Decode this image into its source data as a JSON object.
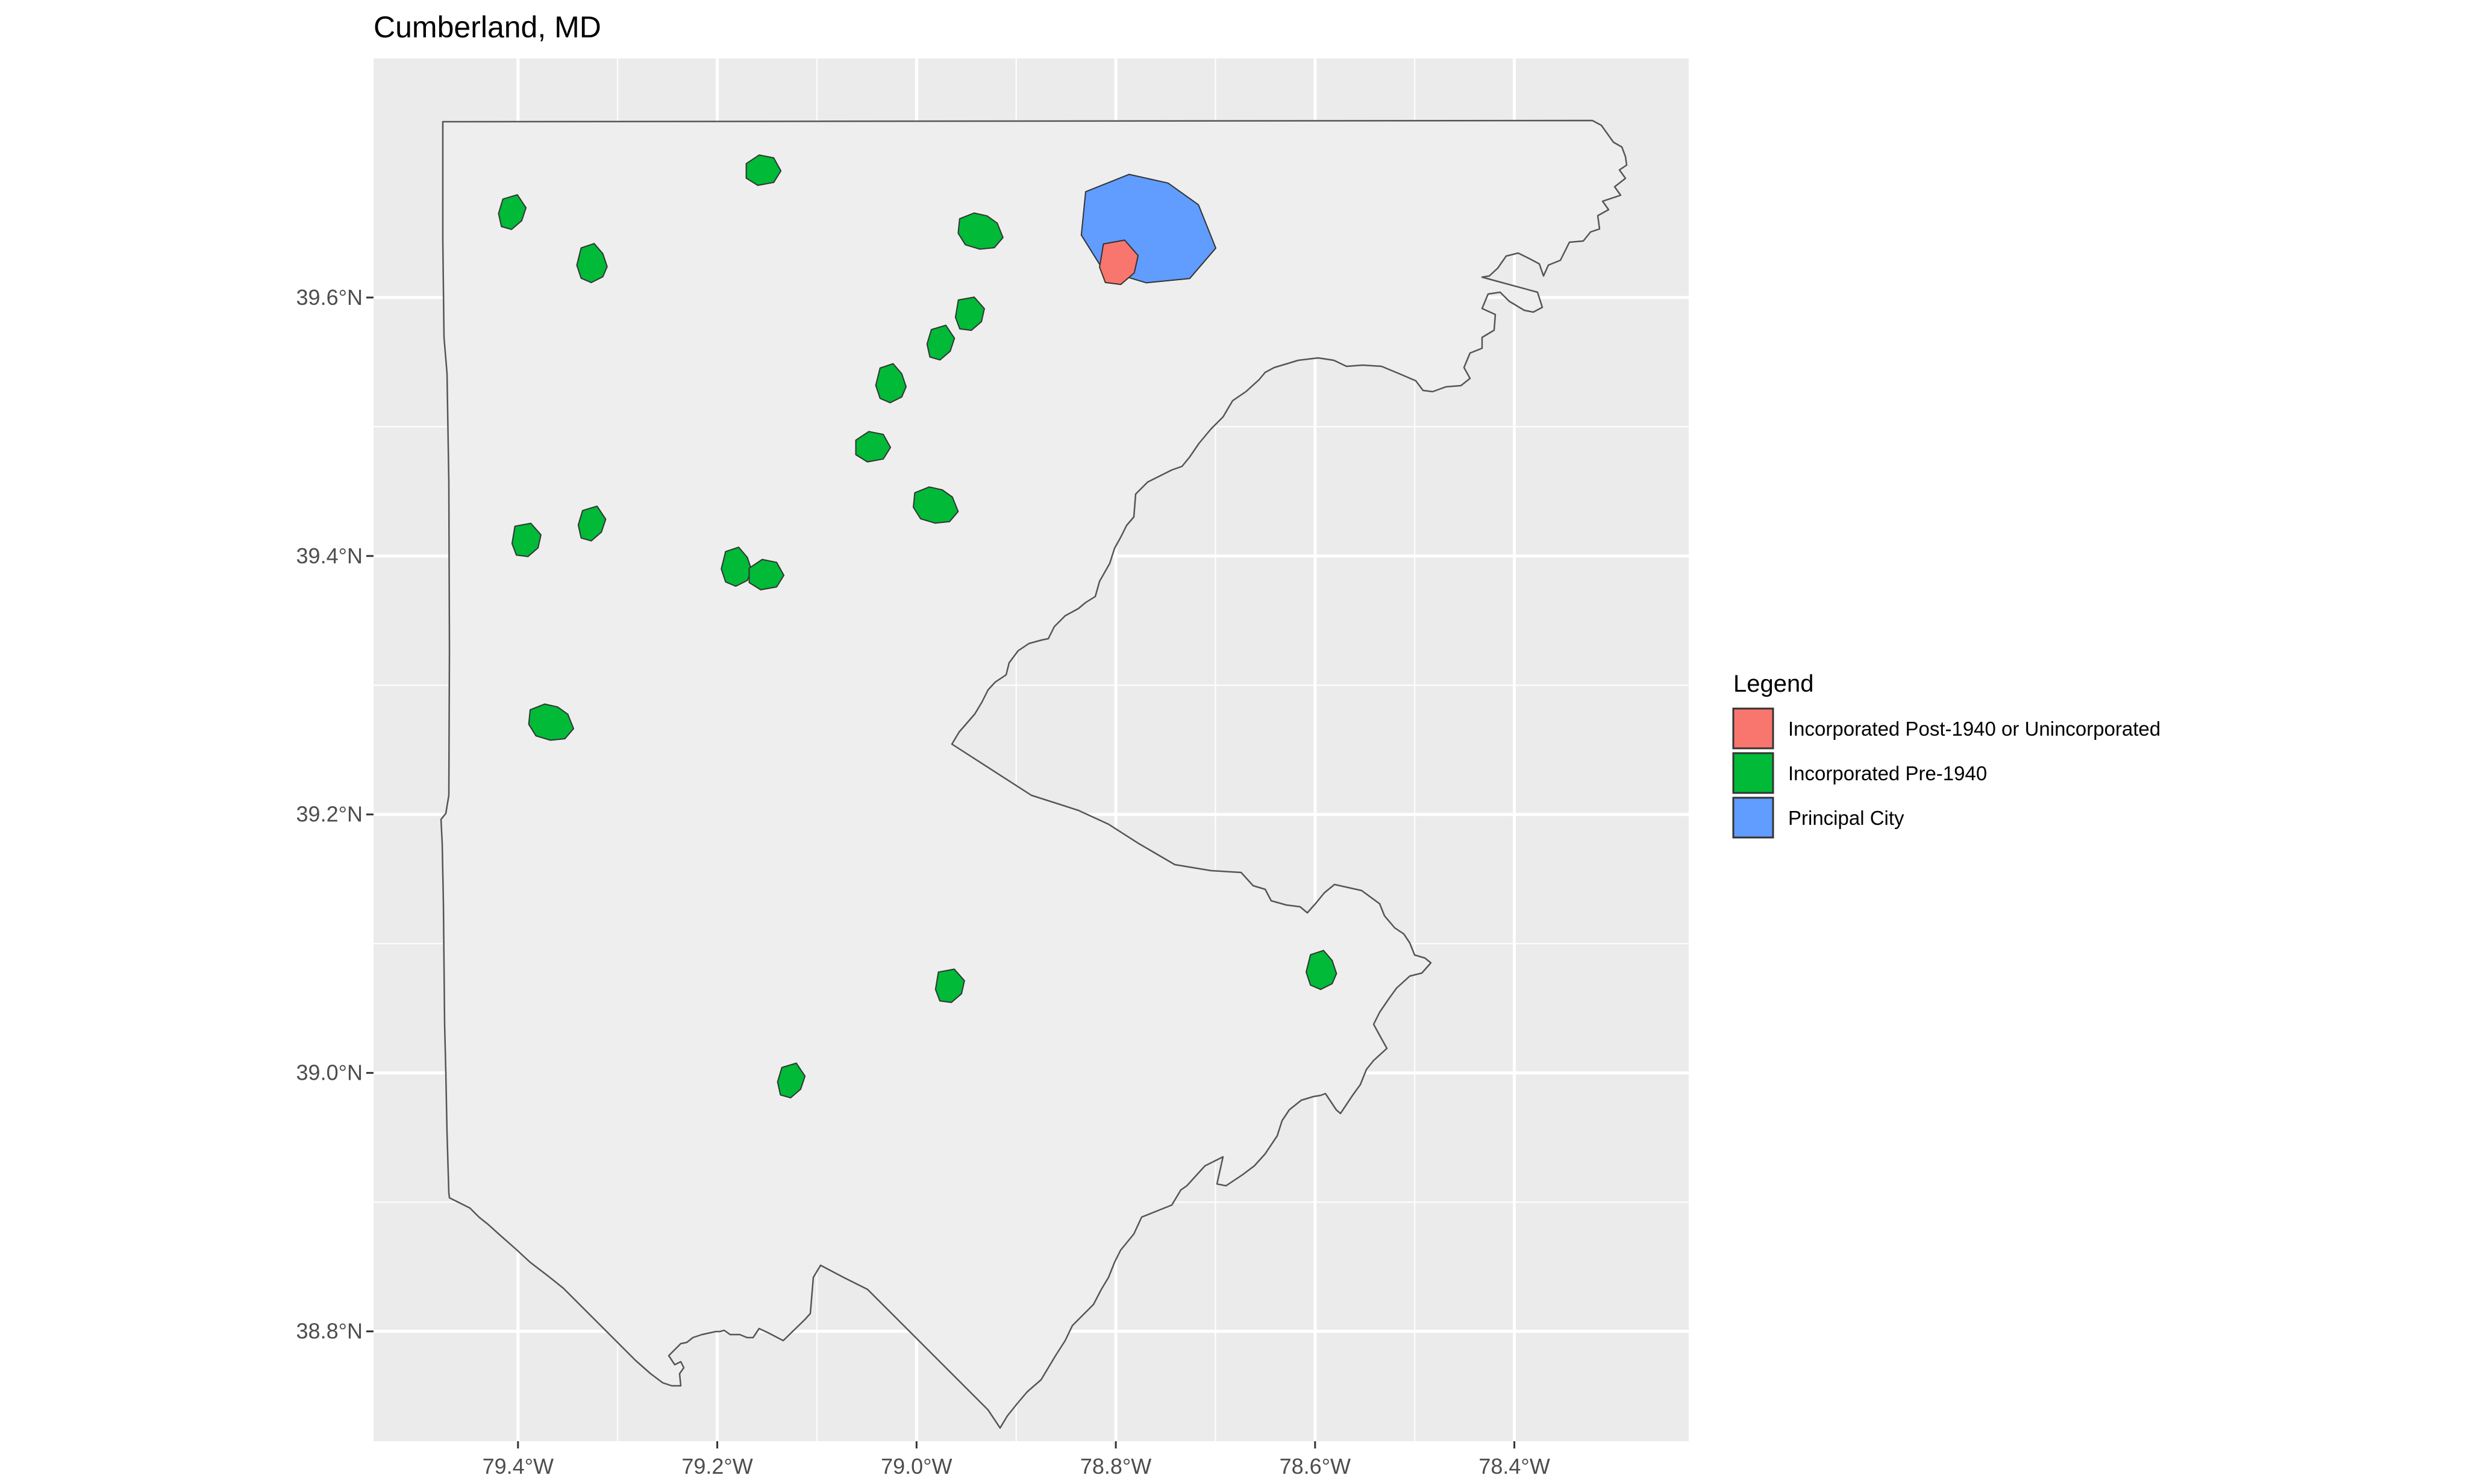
{
  "title": "Cumberland, MD",
  "legend": {
    "title": "Legend",
    "items": [
      {
        "label": "Incorporated Post-1940 or Unincorporated",
        "color": "#F8766D"
      },
      {
        "label": "Incorporated Pre-1940",
        "color": "#00BA38"
      },
      {
        "label": "Principal City",
        "color": "#619CFF"
      }
    ]
  },
  "colors": {
    "panel_background": "#EBEBEB",
    "gridline": "#FFFFFF",
    "county_fill": "#EEEEEE",
    "county_stroke": "#555555",
    "place_stroke": "#333333"
  },
  "chart_data": {
    "type": "map",
    "title": "Cumberland, MD",
    "xlabel": "",
    "ylabel": "",
    "xlim": [
      -79.545,
      -78.225
    ],
    "ylim": [
      38.715,
      39.785
    ],
    "x_ticks": [
      -79.4,
      -79.2,
      -79.0,
      -78.8,
      -78.6,
      -78.4
    ],
    "x_tick_labels": [
      "79.4°W",
      "79.2°W",
      "79.0°W",
      "78.8°W",
      "78.6°W",
      "78.4°W"
    ],
    "y_ticks": [
      38.8,
      39.0,
      39.2,
      39.4,
      39.6
    ],
    "y_tick_labels": [
      "38.8°N",
      "39.0°N",
      "39.2°N",
      "39.4°N",
      "39.6°N"
    ],
    "grid": true,
    "legend_position": "right",
    "places": [
      {
        "category": "Principal City",
        "lon": -78.765,
        "lat": 39.655
      },
      {
        "category": "Incorporated Post-1940 or Unincorporated",
        "lon": -78.795,
        "lat": 39.628
      },
      {
        "category": "Incorporated Pre-1940",
        "lon": -79.405,
        "lat": 39.665
      },
      {
        "category": "Incorporated Pre-1940",
        "lon": -79.325,
        "lat": 39.625
      },
      {
        "category": "Incorporated Pre-1940",
        "lon": -79.155,
        "lat": 39.698
      },
      {
        "category": "Incorporated Pre-1940",
        "lon": -78.935,
        "lat": 39.652
      },
      {
        "category": "Incorporated Pre-1940",
        "lon": -78.945,
        "lat": 39.588
      },
      {
        "category": "Incorporated Pre-1940",
        "lon": -78.975,
        "lat": 39.564
      },
      {
        "category": "Incorporated Pre-1940",
        "lon": -79.025,
        "lat": 39.532
      },
      {
        "category": "Incorporated Pre-1940",
        "lon": -79.045,
        "lat": 39.484
      },
      {
        "category": "Incorporated Pre-1940",
        "lon": -78.98,
        "lat": 39.44
      },
      {
        "category": "Incorporated Pre-1940",
        "lon": -79.39,
        "lat": 39.413
      },
      {
        "category": "Incorporated Pre-1940",
        "lon": -79.325,
        "lat": 39.424
      },
      {
        "category": "Incorporated Pre-1940",
        "lon": -79.18,
        "lat": 39.39
      },
      {
        "category": "Incorporated Pre-1940",
        "lon": -79.152,
        "lat": 39.385
      },
      {
        "category": "Incorporated Pre-1940",
        "lon": -79.366,
        "lat": 39.272
      },
      {
        "category": "Incorporated Pre-1940",
        "lon": -78.965,
        "lat": 39.068
      },
      {
        "category": "Incorporated Pre-1940",
        "lon": -79.125,
        "lat": 38.993
      },
      {
        "category": "Incorporated Pre-1940",
        "lon": -78.593,
        "lat": 39.078
      }
    ]
  }
}
